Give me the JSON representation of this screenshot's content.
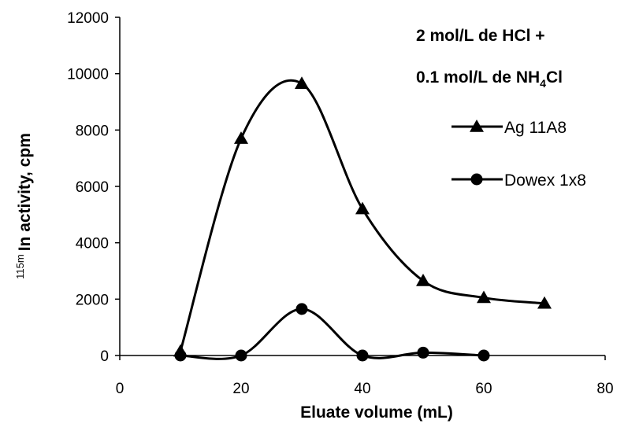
{
  "chart_data": {
    "type": "line",
    "xlabel": "Eluate volume (mL)",
    "ylabel_sup": "115m",
    "ylabel_main": "In activity,  cpm",
    "xlim": [
      0,
      80
    ],
    "ylim": [
      0,
      12000
    ],
    "x_ticks": [
      0,
      20,
      40,
      60,
      80
    ],
    "y_ticks": [
      0,
      2000,
      4000,
      6000,
      8000,
      10000,
      12000
    ],
    "grid": false,
    "legend_position": "right",
    "annotation": {
      "line1": "2 mol/L de HCl +",
      "line2_pre": "0.1 mol/L de NH",
      "line2_sub": "4",
      "line2_post": "Cl"
    },
    "series": [
      {
        "name": "Ag 11A8",
        "marker": "triangle",
        "color": "#000000",
        "x": [
          10,
          20,
          30,
          40,
          50,
          60,
          70
        ],
        "y": [
          150,
          7700,
          9650,
          5200,
          2650,
          2050,
          1850
        ]
      },
      {
        "name": "Dowex 1x8",
        "marker": "circle",
        "color": "#000000",
        "x": [
          10,
          20,
          30,
          40,
          50,
          60
        ],
        "y": [
          0,
          0,
          1650,
          0,
          100,
          0
        ]
      }
    ]
  }
}
